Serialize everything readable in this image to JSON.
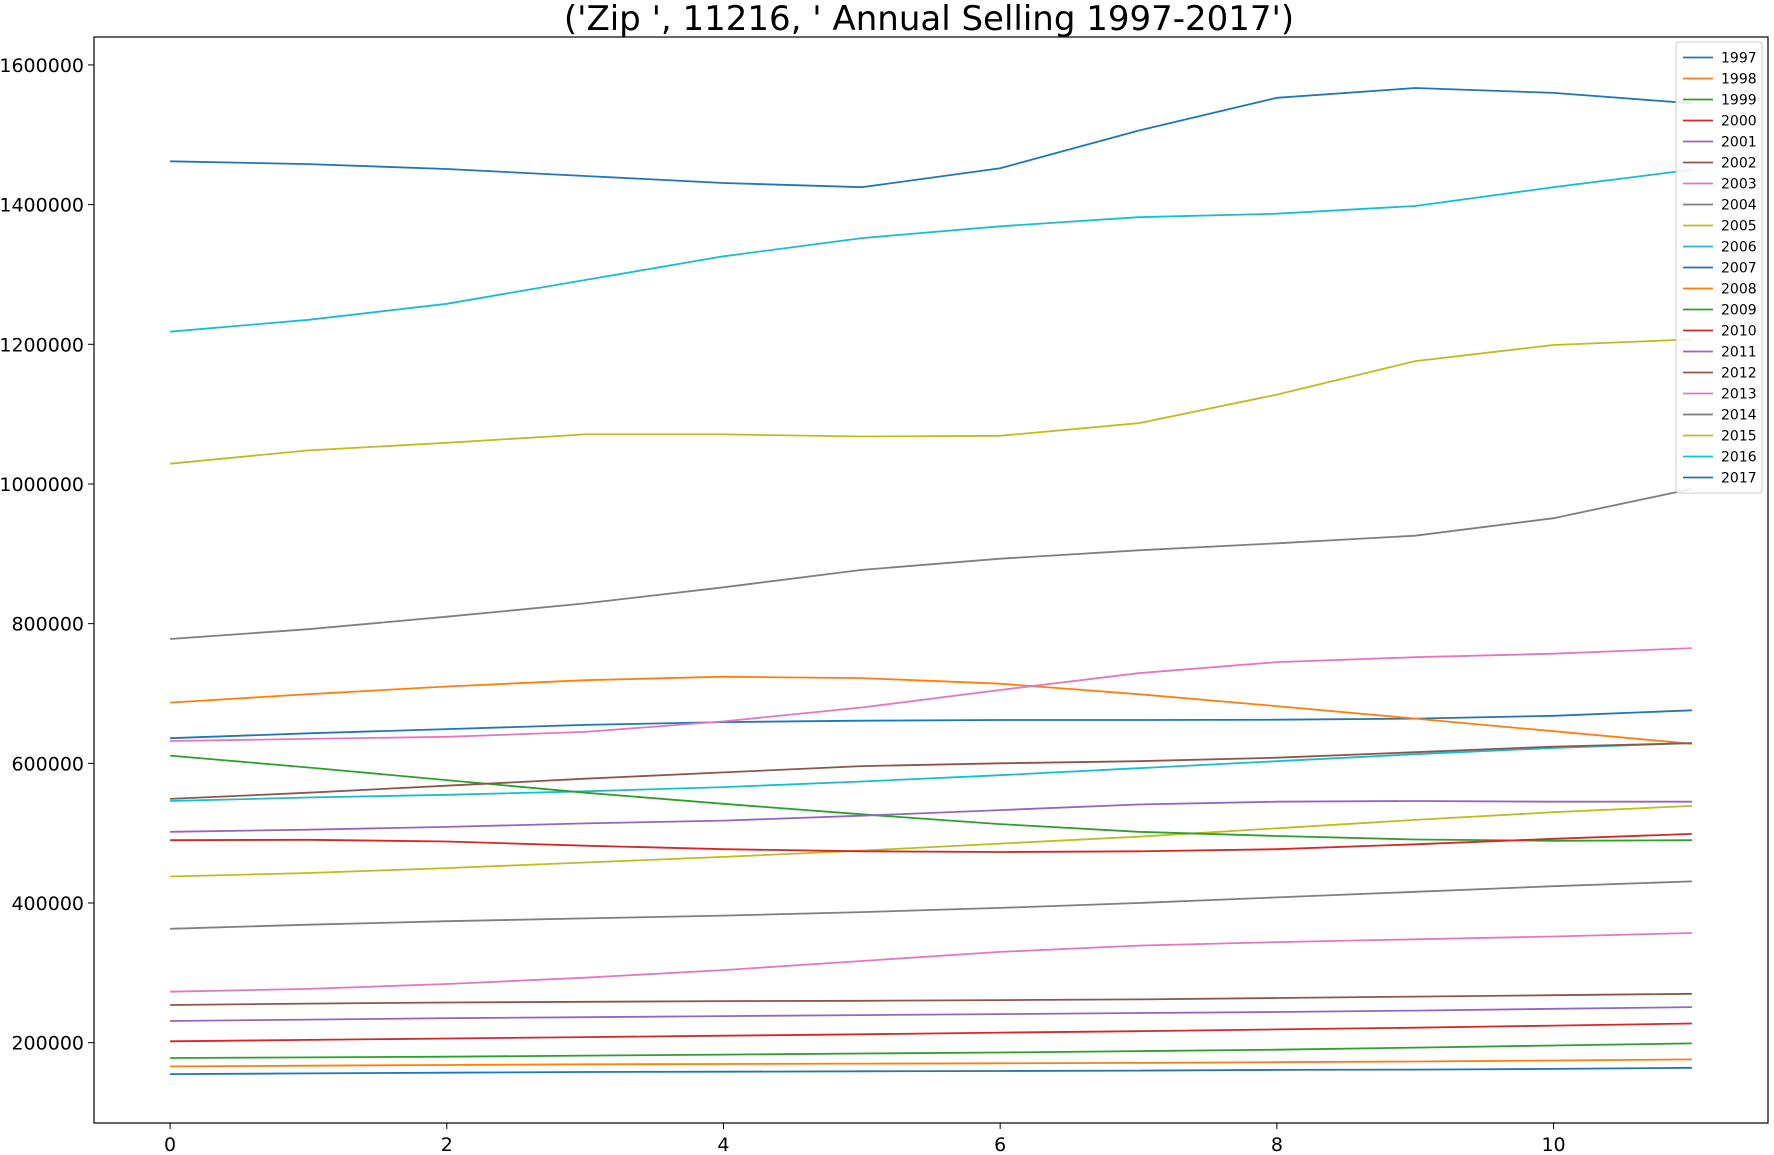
{
  "chart_data": {
    "type": "line",
    "title": "('Zip ', 11216, ' Annual Selling 1997-2017')",
    "xlabel": "",
    "ylabel": "",
    "x": [
      0,
      1,
      2,
      3,
      4,
      5,
      6,
      7,
      8,
      9,
      10,
      11
    ],
    "xlim": [
      -0.55,
      11.55
    ],
    "ylim": [
      85000,
      1640000
    ],
    "x_ticks": [
      0,
      2,
      4,
      6,
      8,
      10
    ],
    "x_tick_labels": [
      "0",
      "2",
      "4",
      "6",
      "8",
      "10"
    ],
    "y_ticks": [
      200000,
      400000,
      600000,
      800000,
      1000000,
      1200000,
      1400000,
      1600000
    ],
    "y_tick_labels": [
      "200000",
      "400000",
      "600000",
      "800000",
      "1000000",
      "1200000",
      "1400000",
      "1600000"
    ],
    "grid": false,
    "legend_position": "top-right",
    "series": [
      {
        "name": "1997",
        "color": "#1f77b4",
        "values": [
          155000,
          156000,
          157000,
          158000,
          158500,
          159000,
          159500,
          160000,
          161000,
          161500,
          162500,
          164000
        ]
      },
      {
        "name": "1998",
        "color": "#ff7f0e",
        "values": [
          166000,
          167000,
          168000,
          169000,
          169500,
          170000,
          170500,
          171000,
          172000,
          173000,
          174500,
          176000
        ]
      },
      {
        "name": "1999",
        "color": "#2ca02c",
        "values": [
          178000,
          179000,
          180000,
          181500,
          183000,
          184500,
          186000,
          188000,
          190000,
          193000,
          196000,
          199000
        ]
      },
      {
        "name": "2000",
        "color": "#d62728",
        "values": [
          202000,
          204000,
          206000,
          208000,
          210000,
          212000,
          214500,
          216500,
          219000,
          221500,
          224500,
          227500
        ]
      },
      {
        "name": "2001",
        "color": "#9467bd",
        "values": [
          231000,
          233000,
          235000,
          236500,
          238000,
          239500,
          241000,
          242500,
          244000,
          246000,
          248500,
          251000
        ]
      },
      {
        "name": "2002",
        "color": "#8c564b",
        "values": [
          254000,
          256000,
          257500,
          258500,
          259500,
          260000,
          261000,
          262000,
          264000,
          266000,
          268000,
          270000
        ]
      },
      {
        "name": "2003",
        "color": "#e377c2",
        "values": [
          273000,
          277000,
          284000,
          293000,
          304000,
          317000,
          330000,
          339000,
          344000,
          348000,
          352000,
          357000
        ]
      },
      {
        "name": "2004",
        "color": "#7f7f7f",
        "values": [
          363000,
          369000,
          374000,
          378000,
          382000,
          387000,
          393000,
          400000,
          408000,
          416000,
          424000,
          431000
        ]
      },
      {
        "name": "2005",
        "color": "#bcbd22",
        "values": [
          438000,
          443000,
          450000,
          458000,
          466000,
          475000,
          485000,
          495000,
          507000,
          519000,
          530000,
          539000
        ]
      },
      {
        "name": "2006",
        "color": "#17becf",
        "values": [
          546000,
          551000,
          555000,
          560000,
          566000,
          574000,
          583000,
          593000,
          603000,
          613000,
          622000,
          629000
        ]
      },
      {
        "name": "2007",
        "color": "#1f77b4",
        "values": [
          636000,
          643000,
          649000,
          655000,
          659000,
          661000,
          662000,
          662000,
          662500,
          664000,
          668000,
          676000
        ]
      },
      {
        "name": "2008",
        "color": "#ff7f0e",
        "values": [
          687000,
          699000,
          710000,
          719000,
          724000,
          722000,
          714000,
          699000,
          682000,
          664000,
          646000,
          628000
        ]
      },
      {
        "name": "2009",
        "color": "#2ca02c",
        "values": [
          611000,
          594000,
          576000,
          558000,
          542000,
          527000,
          513000,
          502000,
          496000,
          491000,
          489000,
          490000
        ]
      },
      {
        "name": "2010",
        "color": "#d62728",
        "values": [
          490000,
          490500,
          488000,
          482000,
          477000,
          474000,
          473000,
          474000,
          477000,
          484000,
          492000,
          499000
        ]
      },
      {
        "name": "2011",
        "color": "#9467bd",
        "values": [
          502000,
          505000,
          509000,
          514000,
          518000,
          525000,
          533000,
          541000,
          545000,
          546000,
          545000,
          545000
        ]
      },
      {
        "name": "2012",
        "color": "#8c564b",
        "values": [
          549000,
          558000,
          568000,
          578000,
          587000,
          596000,
          600000,
          603000,
          608000,
          616000,
          624000,
          629000
        ]
      },
      {
        "name": "2013",
        "color": "#e377c2",
        "values": [
          632000,
          635000,
          638000,
          645000,
          660000,
          680000,
          705000,
          729000,
          745000,
          752000,
          757000,
          765000
        ]
      },
      {
        "name": "2014",
        "color": "#7f7f7f",
        "values": [
          778000,
          792000,
          810000,
          829000,
          852000,
          877000,
          893000,
          905000,
          915000,
          926000,
          951000,
          993000
        ]
      },
      {
        "name": "2015",
        "color": "#bcbd22",
        "values": [
          1029000,
          1048000,
          1059000,
          1071000,
          1071000,
          1068000,
          1069000,
          1087000,
          1128000,
          1176000,
          1199000,
          1207000
        ]
      },
      {
        "name": "2016",
        "color": "#17becf",
        "values": [
          1218000,
          1235000,
          1258000,
          1292000,
          1326000,
          1352000,
          1369000,
          1382000,
          1387000,
          1398000,
          1425000,
          1450000
        ]
      },
      {
        "name": "2017",
        "color": "#1f77b4",
        "values": [
          1462000,
          1458000,
          1451000,
          1441000,
          1431000,
          1425000,
          1452000,
          1506000,
          1553000,
          1567000,
          1560000,
          1545000
        ]
      }
    ]
  }
}
